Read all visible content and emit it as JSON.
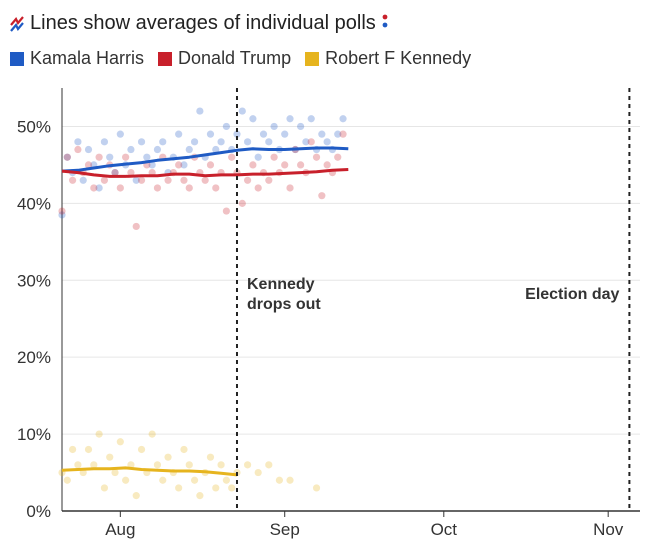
{
  "title": "Lines show averages of individual polls",
  "title_icon": "trend-lines-icon",
  "chart_data": {
    "type": "scatter",
    "title": "Lines show averages of individual polls",
    "xlabel": "",
    "ylabel": "",
    "x_ticks": [
      "Aug",
      "Sep",
      "Oct",
      "Nov"
    ],
    "y_ticks": [
      "0%",
      "10%",
      "20%",
      "30%",
      "40%",
      "50%"
    ],
    "ylim": [
      0,
      55
    ],
    "xlim": [
      "2024-07-21",
      "2024-11-07"
    ],
    "grid": true,
    "legend_position": "top-left",
    "annotations": [
      {
        "line1": "Kennedy",
        "line2": "drops out",
        "date": "2024-08-23"
      },
      {
        "line1": "Election day",
        "line2": "",
        "date": "2024-11-05"
      }
    ],
    "series": [
      {
        "name": "Kamala Harris",
        "color": "#1f5bc4",
        "average": [
          [
            "2024-07-21",
            44.2
          ],
          [
            "2024-07-24",
            44.3
          ],
          [
            "2024-07-27",
            44.6
          ],
          [
            "2024-07-30",
            44.9
          ],
          [
            "2024-08-02",
            45.1
          ],
          [
            "2024-08-05",
            45.3
          ],
          [
            "2024-08-08",
            45.6
          ],
          [
            "2024-08-11",
            45.8
          ],
          [
            "2024-08-14",
            46.0
          ],
          [
            "2024-08-17",
            46.3
          ],
          [
            "2024-08-20",
            46.6
          ],
          [
            "2024-08-23",
            46.9
          ],
          [
            "2024-08-26",
            47.1
          ],
          [
            "2024-08-29",
            47.0
          ],
          [
            "2024-09-01",
            47.0
          ],
          [
            "2024-09-04",
            47.1
          ],
          [
            "2024-09-07",
            47.2
          ],
          [
            "2024-09-10",
            47.2
          ],
          [
            "2024-09-13",
            47.1
          ]
        ],
        "polls": [
          [
            "2024-07-21",
            38.5
          ],
          [
            "2024-07-22",
            46
          ],
          [
            "2024-07-23",
            44
          ],
          [
            "2024-07-24",
            48
          ],
          [
            "2024-07-25",
            43
          ],
          [
            "2024-07-26",
            47
          ],
          [
            "2024-07-27",
            45
          ],
          [
            "2024-07-28",
            42
          ],
          [
            "2024-07-29",
            48
          ],
          [
            "2024-07-30",
            46
          ],
          [
            "2024-07-31",
            44
          ],
          [
            "2024-08-01",
            49
          ],
          [
            "2024-08-02",
            45
          ],
          [
            "2024-08-03",
            47
          ],
          [
            "2024-08-04",
            43
          ],
          [
            "2024-08-05",
            48
          ],
          [
            "2024-08-06",
            46
          ],
          [
            "2024-08-07",
            45
          ],
          [
            "2024-08-08",
            47
          ],
          [
            "2024-08-09",
            48
          ],
          [
            "2024-08-10",
            44
          ],
          [
            "2024-08-11",
            46
          ],
          [
            "2024-08-12",
            49
          ],
          [
            "2024-08-13",
            45
          ],
          [
            "2024-08-14",
            47
          ],
          [
            "2024-08-15",
            48
          ],
          [
            "2024-08-16",
            52
          ],
          [
            "2024-08-17",
            46
          ],
          [
            "2024-08-18",
            49
          ],
          [
            "2024-08-19",
            47
          ],
          [
            "2024-08-20",
            48
          ],
          [
            "2024-08-21",
            50
          ],
          [
            "2024-08-22",
            47
          ],
          [
            "2024-08-23",
            49
          ],
          [
            "2024-08-24",
            52
          ],
          [
            "2024-08-25",
            48
          ],
          [
            "2024-08-26",
            51
          ],
          [
            "2024-08-27",
            46
          ],
          [
            "2024-08-28",
            49
          ],
          [
            "2024-08-29",
            48
          ],
          [
            "2024-08-30",
            50
          ],
          [
            "2024-08-31",
            47
          ],
          [
            "2024-09-01",
            49
          ],
          [
            "2024-09-02",
            51
          ],
          [
            "2024-09-03",
            47
          ],
          [
            "2024-09-04",
            50
          ],
          [
            "2024-09-05",
            48
          ],
          [
            "2024-09-06",
            51
          ],
          [
            "2024-09-07",
            47
          ],
          [
            "2024-09-08",
            49
          ],
          [
            "2024-09-09",
            48
          ],
          [
            "2024-09-10",
            47
          ],
          [
            "2024-09-11",
            49
          ],
          [
            "2024-09-12",
            51
          ]
        ]
      },
      {
        "name": "Donald Trump",
        "color": "#c8202b",
        "average": [
          [
            "2024-07-21",
            44.2
          ],
          [
            "2024-07-24",
            44.0
          ],
          [
            "2024-07-27",
            43.7
          ],
          [
            "2024-07-30",
            43.5
          ],
          [
            "2024-08-02",
            43.5
          ],
          [
            "2024-08-05",
            43.6
          ],
          [
            "2024-08-08",
            43.6
          ],
          [
            "2024-08-11",
            43.8
          ],
          [
            "2024-08-14",
            43.8
          ],
          [
            "2024-08-17",
            43.6
          ],
          [
            "2024-08-20",
            43.7
          ],
          [
            "2024-08-23",
            43.7
          ],
          [
            "2024-08-26",
            43.8
          ],
          [
            "2024-08-29",
            43.8
          ],
          [
            "2024-09-01",
            43.9
          ],
          [
            "2024-09-04",
            44.0
          ],
          [
            "2024-09-07",
            44.1
          ],
          [
            "2024-09-10",
            44.3
          ],
          [
            "2024-09-13",
            44.4
          ]
        ],
        "polls": [
          [
            "2024-07-21",
            39
          ],
          [
            "2024-07-22",
            46
          ],
          [
            "2024-07-23",
            43
          ],
          [
            "2024-07-24",
            47
          ],
          [
            "2024-07-25",
            44
          ],
          [
            "2024-07-26",
            45
          ],
          [
            "2024-07-27",
            42
          ],
          [
            "2024-07-28",
            46
          ],
          [
            "2024-07-29",
            43
          ],
          [
            "2024-07-30",
            45
          ],
          [
            "2024-07-31",
            44
          ],
          [
            "2024-08-01",
            42
          ],
          [
            "2024-08-02",
            46
          ],
          [
            "2024-08-03",
            44
          ],
          [
            "2024-08-04",
            37
          ],
          [
            "2024-08-05",
            43
          ],
          [
            "2024-08-06",
            45
          ],
          [
            "2024-08-07",
            44
          ],
          [
            "2024-08-08",
            42
          ],
          [
            "2024-08-09",
            46
          ],
          [
            "2024-08-10",
            43
          ],
          [
            "2024-08-11",
            44
          ],
          [
            "2024-08-12",
            45
          ],
          [
            "2024-08-13",
            43
          ],
          [
            "2024-08-14",
            42
          ],
          [
            "2024-08-15",
            46
          ],
          [
            "2024-08-16",
            44
          ],
          [
            "2024-08-17",
            43
          ],
          [
            "2024-08-18",
            45
          ],
          [
            "2024-08-19",
            42
          ],
          [
            "2024-08-20",
            44
          ],
          [
            "2024-08-21",
            39
          ],
          [
            "2024-08-22",
            46
          ],
          [
            "2024-08-23",
            44
          ],
          [
            "2024-08-24",
            40
          ],
          [
            "2024-08-25",
            43
          ],
          [
            "2024-08-26",
            45
          ],
          [
            "2024-08-27",
            42
          ],
          [
            "2024-08-28",
            44
          ],
          [
            "2024-08-29",
            43
          ],
          [
            "2024-08-30",
            46
          ],
          [
            "2024-08-31",
            44
          ],
          [
            "2024-09-01",
            45
          ],
          [
            "2024-09-02",
            42
          ],
          [
            "2024-09-03",
            47
          ],
          [
            "2024-09-04",
            45
          ],
          [
            "2024-09-05",
            44
          ],
          [
            "2024-09-06",
            48
          ],
          [
            "2024-09-07",
            46
          ],
          [
            "2024-09-08",
            41
          ],
          [
            "2024-09-09",
            45
          ],
          [
            "2024-09-10",
            44
          ],
          [
            "2024-09-11",
            46
          ],
          [
            "2024-09-12",
            49
          ]
        ]
      },
      {
        "name": "Robert F Kennedy",
        "color": "#e6b41e",
        "average": [
          [
            "2024-07-21",
            5.3
          ],
          [
            "2024-07-24",
            5.4
          ],
          [
            "2024-07-27",
            5.5
          ],
          [
            "2024-07-30",
            5.5
          ],
          [
            "2024-08-02",
            5.6
          ],
          [
            "2024-08-05",
            5.4
          ],
          [
            "2024-08-08",
            5.3
          ],
          [
            "2024-08-11",
            5.2
          ],
          [
            "2024-08-14",
            5.2
          ],
          [
            "2024-08-17",
            5.1
          ],
          [
            "2024-08-20",
            4.9
          ],
          [
            "2024-08-23",
            4.7
          ]
        ],
        "polls": [
          [
            "2024-07-21",
            5
          ],
          [
            "2024-07-22",
            4
          ],
          [
            "2024-07-23",
            8
          ],
          [
            "2024-07-24",
            6
          ],
          [
            "2024-07-25",
            5
          ],
          [
            "2024-07-26",
            8
          ],
          [
            "2024-07-27",
            6
          ],
          [
            "2024-07-28",
            10
          ],
          [
            "2024-07-29",
            3
          ],
          [
            "2024-07-30",
            7
          ],
          [
            "2024-07-31",
            5
          ],
          [
            "2024-08-01",
            9
          ],
          [
            "2024-08-02",
            4
          ],
          [
            "2024-08-03",
            6
          ],
          [
            "2024-08-04",
            2
          ],
          [
            "2024-08-05",
            8
          ],
          [
            "2024-08-06",
            5
          ],
          [
            "2024-08-07",
            10
          ],
          [
            "2024-08-08",
            6
          ],
          [
            "2024-08-09",
            4
          ],
          [
            "2024-08-10",
            7
          ],
          [
            "2024-08-11",
            5
          ],
          [
            "2024-08-12",
            3
          ],
          [
            "2024-08-13",
            8
          ],
          [
            "2024-08-14",
            6
          ],
          [
            "2024-08-15",
            4
          ],
          [
            "2024-08-16",
            2
          ],
          [
            "2024-08-17",
            5
          ],
          [
            "2024-08-18",
            7
          ],
          [
            "2024-08-19",
            3
          ],
          [
            "2024-08-20",
            6
          ],
          [
            "2024-08-21",
            4
          ],
          [
            "2024-08-22",
            3
          ],
          [
            "2024-08-23",
            5
          ],
          [
            "2024-08-25",
            6
          ],
          [
            "2024-08-27",
            5
          ],
          [
            "2024-08-29",
            6
          ],
          [
            "2024-08-31",
            4
          ],
          [
            "2024-09-02",
            4
          ],
          [
            "2024-09-07",
            3
          ]
        ]
      }
    ]
  }
}
